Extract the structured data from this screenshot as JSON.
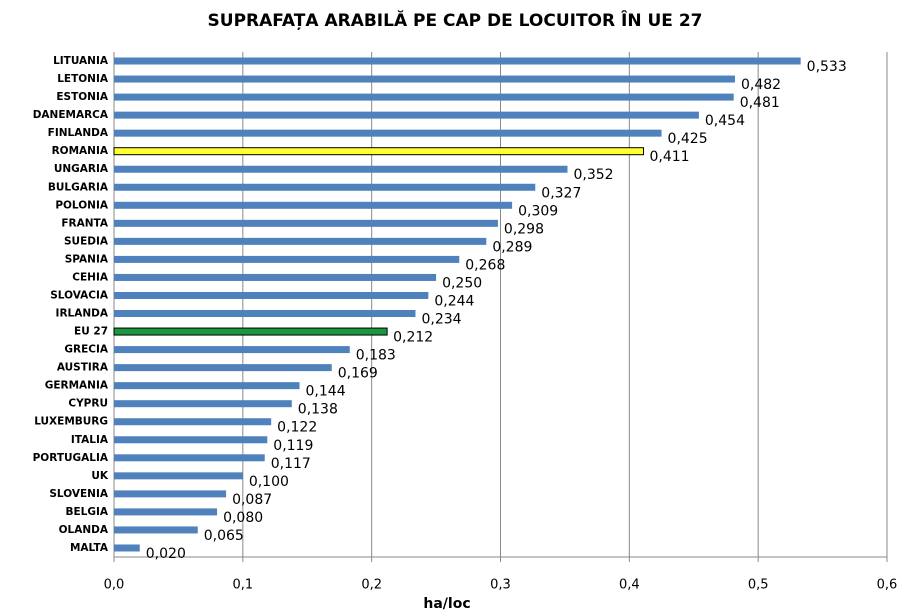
{
  "chart_data": {
    "type": "bar",
    "orientation": "horizontal",
    "title": "SUPRAFAȚA ARABILĂ PE CAP DE LOCUITOR ÎN UE 27",
    "x_label": "ha/loc",
    "categories": [
      "LITUANIA",
      "LETONIA",
      "ESTONIA",
      "DANEMARCA",
      "FINLANDA",
      "ROMANIA",
      "UNGARIA",
      "BULGARIA",
      "POLONIA",
      "FRANTA",
      "SUEDIA",
      "SPANIA",
      "CEHIA",
      "SLOVACIA",
      "IRLANDA",
      "EU 27",
      "GRECIA",
      "AUSTIRA",
      "GERMANIA",
      "CYPRU",
      "LUXEMBURG",
      "ITALIA",
      "PORTUGALIA",
      "UK",
      "SLOVENIA",
      "BELGIA",
      "OLANDA",
      "MALTA"
    ],
    "values": [
      0.533,
      0.482,
      0.481,
      0.454,
      0.425,
      0.411,
      0.352,
      0.327,
      0.309,
      0.298,
      0.289,
      0.268,
      0.25,
      0.244,
      0.234,
      0.212,
      0.183,
      0.169,
      0.144,
      0.138,
      0.122,
      0.119,
      0.117,
      0.1,
      0.087,
      0.08,
      0.065,
      0.02
    ],
    "value_labels": [
      "0,533",
      "0,482",
      "0,481",
      "0,454",
      "0,425",
      "0,411",
      "0,352",
      "0,327",
      "0,309",
      "0,298",
      "0,289",
      "0,268",
      "0,250",
      "0,244",
      "0,234",
      "0,212",
      "0,183",
      "0,169",
      "0,144",
      "0,138",
      "0,122",
      "0,119",
      "0,117",
      "0,100",
      "0,087",
      "0,080",
      "0,065",
      "0,020"
    ],
    "colors": [
      "#4f81bd",
      "#4f81bd",
      "#4f81bd",
      "#4f81bd",
      "#4f81bd",
      "#ffff33",
      "#4f81bd",
      "#4f81bd",
      "#4f81bd",
      "#4f81bd",
      "#4f81bd",
      "#4f81bd",
      "#4f81bd",
      "#4f81bd",
      "#4f81bd",
      "#1a9641",
      "#4f81bd",
      "#4f81bd",
      "#4f81bd",
      "#4f81bd",
      "#4f81bd",
      "#4f81bd",
      "#4f81bd",
      "#4f81bd",
      "#4f81bd",
      "#4f81bd",
      "#4f81bd",
      "#4f81bd"
    ],
    "xlim": [
      0,
      0.6
    ],
    "xticks": [
      {
        "value": 0,
        "label": "0,0"
      },
      {
        "value": 0.1,
        "label": "0,1"
      },
      {
        "value": 0.2,
        "label": "0,2"
      },
      {
        "value": 0.3,
        "label": "0,3"
      },
      {
        "value": 0.4,
        "label": "0,4"
      },
      {
        "value": 0.5,
        "label": "0,5"
      },
      {
        "value": 0.6,
        "label": "0,6"
      }
    ],
    "grid": true
  }
}
